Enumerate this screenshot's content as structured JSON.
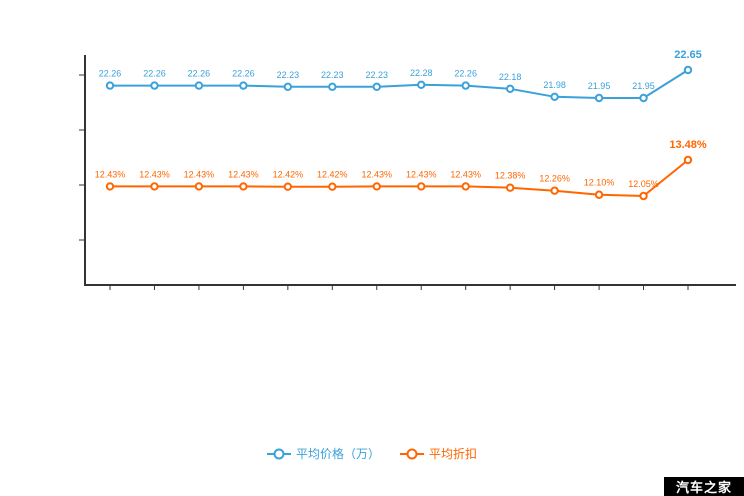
{
  "watermark": {
    "text": "汽车之家",
    "bg": "#000000",
    "color": "#ffffff"
  },
  "legend": [
    {
      "label": "平均价格（万）",
      "color": "#3aa1da"
    },
    {
      "label": "平均折扣",
      "color": "#ff6600"
    }
  ],
  "colors": {
    "axis": "#333333",
    "blue": "#3aa1da",
    "orange": "#ff6600"
  },
  "chart_data": {
    "type": "line",
    "title": "",
    "xlabel": "",
    "ylabel": "",
    "grid": false,
    "legend_position": "bottom",
    "axis_tick_labels_visible": false,
    "series": [
      {
        "name": "平均价格（万）",
        "color": "#3aa1da",
        "unit": "万",
        "values": [
          22.26,
          22.26,
          22.26,
          22.26,
          22.23,
          22.23,
          22.23,
          22.28,
          22.26,
          22.18,
          21.98,
          21.95,
          21.95,
          22.65
        ],
        "labels": [
          "22.26",
          "22.26",
          "22.26",
          "22.26",
          "22.23",
          "22.23",
          "22.23",
          "22.28",
          "22.26",
          "22.18",
          "21.98",
          "21.95",
          "21.95",
          "22.65"
        ]
      },
      {
        "name": "平均折扣",
        "color": "#ff6600",
        "unit": "%",
        "values": [
          12.43,
          12.43,
          12.43,
          12.43,
          12.42,
          12.42,
          12.43,
          12.43,
          12.43,
          12.38,
          12.26,
          12.1,
          12.05,
          13.48
        ],
        "labels": [
          "12.43%",
          "12.43%",
          "12.43%",
          "12.43%",
          "12.42%",
          "12.42%",
          "12.43%",
          "12.43%",
          "12.43%",
          "12.38%",
          "12.26%",
          "12.10%",
          "12.05%",
          "13.48%"
        ]
      }
    ]
  }
}
